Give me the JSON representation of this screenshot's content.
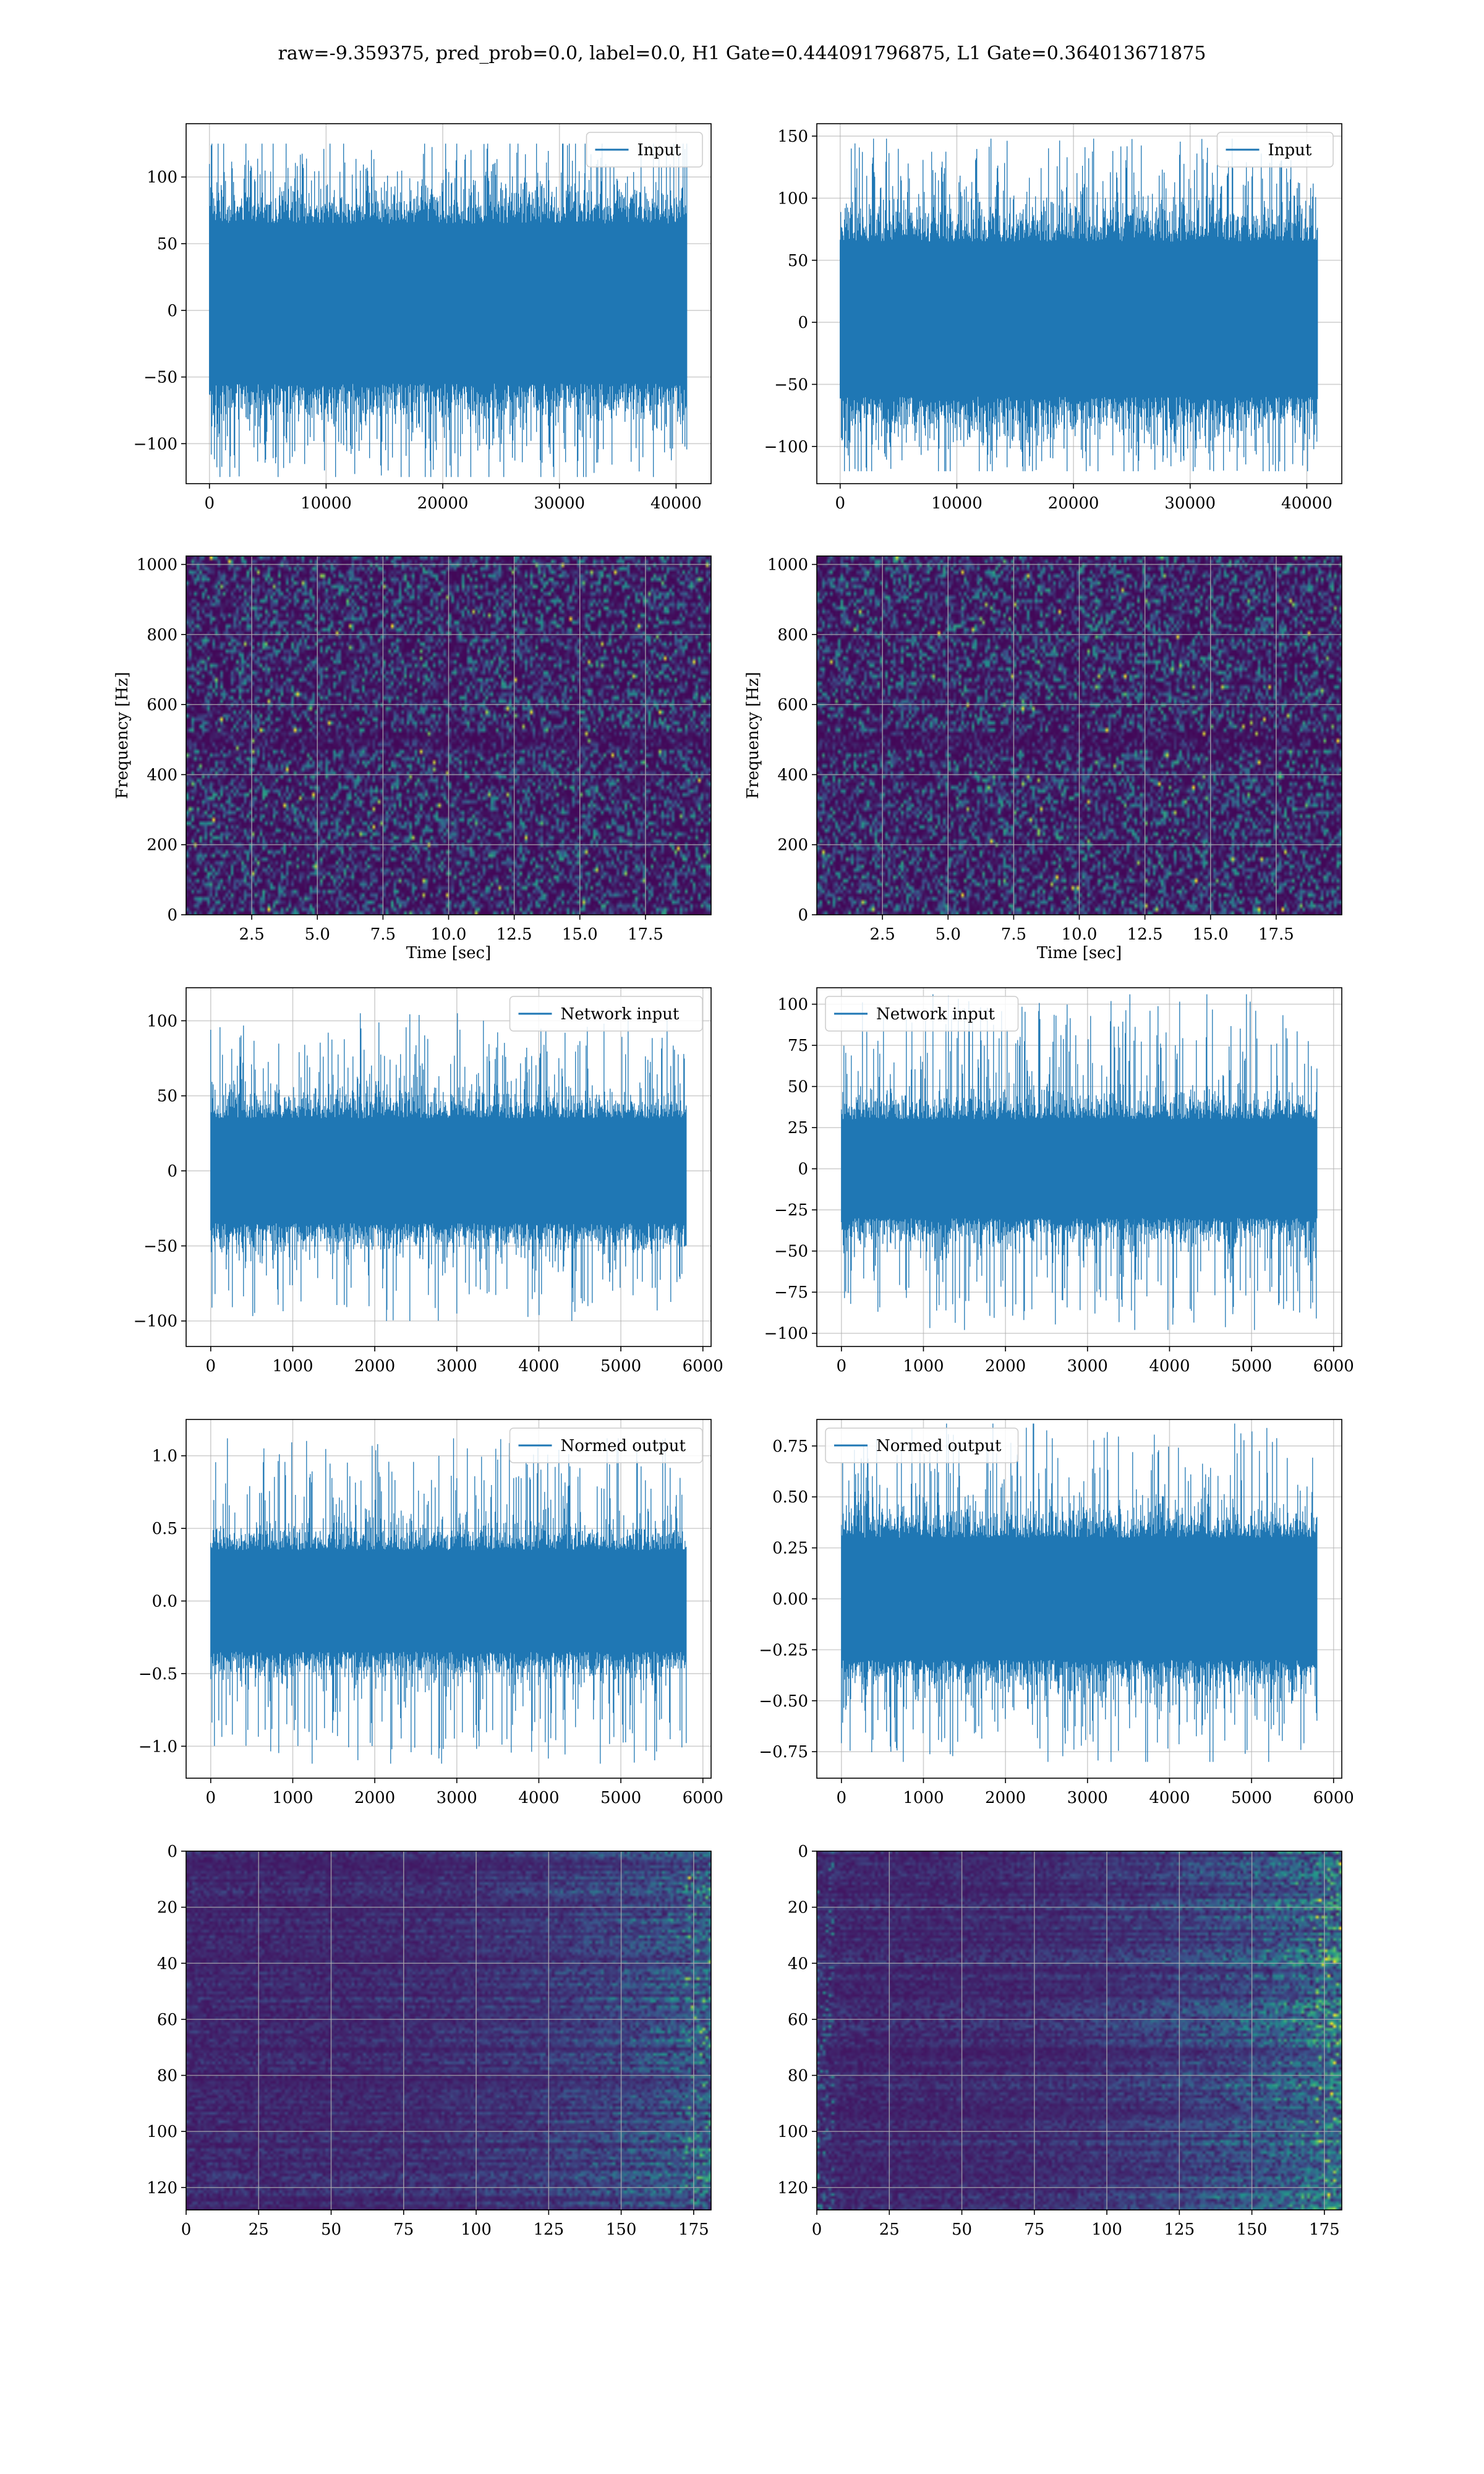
{
  "figure": {
    "title": "raw=-9.359375, pred_prob=0.0, label=0.0, H1 Gate=0.444091796875, L1 Gate=0.364013671875"
  },
  "colors": {
    "series": "#1f77b4",
    "grid": "#b0b0b0",
    "viridis": [
      "#440154",
      "#3b528b",
      "#21918c",
      "#5ec962",
      "#fde725"
    ]
  },
  "chart_data": [
    {
      "id": "h1-input",
      "type": "line",
      "legend": "Input",
      "legend_loc": "top-right",
      "xlim": [
        -2000,
        43000
      ],
      "ylim": [
        -130,
        140
      ],
      "xticks": [
        0,
        10000,
        20000,
        30000,
        40000
      ],
      "xtick_labels": [
        "0",
        "10000",
        "20000",
        "30000",
        "40000"
      ],
      "yticks": [
        100,
        50,
        0,
        -50,
        -100
      ],
      "ytick_labels": [
        "100",
        "50",
        "0",
        "−50",
        "−100"
      ],
      "grid": true,
      "series": [
        {
          "n_points": 40960,
          "x_start": 0,
          "x_end": 40960,
          "core_range": [
            -55,
            65
          ],
          "peak_range": [
            -125,
            125
          ]
        }
      ]
    },
    {
      "id": "l1-input",
      "type": "line",
      "legend": "Input",
      "legend_loc": "top-right",
      "xlim": [
        -2000,
        43000
      ],
      "ylim": [
        -130,
        160
      ],
      "xticks": [
        0,
        10000,
        20000,
        30000,
        40000
      ],
      "xtick_labels": [
        "0",
        "10000",
        "20000",
        "30000",
        "40000"
      ],
      "yticks": [
        150,
        100,
        50,
        0,
        -50,
        -100
      ],
      "ytick_labels": [
        "150",
        "100",
        "50",
        "0",
        "−50",
        "−100"
      ],
      "grid": true,
      "series": [
        {
          "n_points": 40960,
          "x_start": 0,
          "x_end": 40960,
          "core_range": [
            -60,
            65
          ],
          "peak_range": [
            -120,
            148
          ]
        }
      ]
    },
    {
      "id": "h1-spectrogram",
      "type": "heatmap",
      "xlabel": "Time [sec]",
      "ylabel": "Frequency [Hz]",
      "xlim": [
        0,
        20
      ],
      "ylim": [
        0,
        1024
      ],
      "xticks": [
        2.5,
        5,
        7.5,
        10,
        12.5,
        15,
        17.5
      ],
      "xtick_labels": [
        "2.5",
        "5.0",
        "7.5",
        "10.0",
        "12.5",
        "15.0",
        "17.5"
      ],
      "yticks": [
        0,
        200,
        400,
        600,
        800,
        1000
      ],
      "ytick_labels": [
        "0",
        "200",
        "400",
        "600",
        "800",
        "1000"
      ],
      "grid": true,
      "colormap": "viridis"
    },
    {
      "id": "l1-spectrogram",
      "type": "heatmap",
      "xlabel": "Time [sec]",
      "ylabel": "Frequency [Hz]",
      "xlim": [
        0,
        20
      ],
      "ylim": [
        0,
        1024
      ],
      "xticks": [
        2.5,
        5,
        7.5,
        10,
        12.5,
        15,
        17.5
      ],
      "xtick_labels": [
        "2.5",
        "5.0",
        "7.5",
        "10.0",
        "12.5",
        "15.0",
        "17.5"
      ],
      "yticks": [
        0,
        200,
        400,
        600,
        800,
        1000
      ],
      "ytick_labels": [
        "0",
        "200",
        "400",
        "600",
        "800",
        "1000"
      ],
      "grid": true,
      "colormap": "viridis"
    },
    {
      "id": "h1-network-input",
      "type": "line",
      "legend": "Network input",
      "legend_loc": "top-right",
      "xlim": [
        -300,
        6100
      ],
      "ylim": [
        -117,
        122
      ],
      "xticks": [
        0,
        1000,
        2000,
        3000,
        4000,
        5000,
        6000
      ],
      "xtick_labels": [
        "0",
        "1000",
        "2000",
        "3000",
        "4000",
        "5000",
        "6000"
      ],
      "yticks": [
        100,
        50,
        0,
        -50,
        -100
      ],
      "ytick_labels": [
        "100",
        "50",
        "0",
        "−50",
        "−100"
      ],
      "grid": true,
      "series": [
        {
          "n_points": 5800,
          "x_start": 0,
          "x_end": 5800,
          "core_range": [
            -35,
            35
          ],
          "peak_range": [
            -100,
            105
          ]
        }
      ]
    },
    {
      "id": "l1-network-input",
      "type": "line",
      "legend": "Network input",
      "legend_loc": "top-left",
      "xlim": [
        -300,
        6100
      ],
      "ylim": [
        -108,
        110
      ],
      "xticks": [
        0,
        1000,
        2000,
        3000,
        4000,
        5000,
        6000
      ],
      "xtick_labels": [
        "0",
        "1000",
        "2000",
        "3000",
        "4000",
        "5000",
        "6000"
      ],
      "yticks": [
        100,
        75,
        50,
        25,
        0,
        -25,
        -50,
        -75,
        -100
      ],
      "ytick_labels": [
        "100",
        "75",
        "50",
        "25",
        "0",
        "−25",
        "−50",
        "−75",
        "−100"
      ],
      "grid": true,
      "series": [
        {
          "n_points": 5800,
          "x_start": 0,
          "x_end": 5800,
          "core_range": [
            -30,
            30
          ],
          "peak_range": [
            -98,
            106
          ]
        }
      ]
    },
    {
      "id": "h1-normed-output",
      "type": "line",
      "legend": "Normed output",
      "legend_loc": "top-right",
      "xlim": [
        -300,
        6100
      ],
      "ylim": [
        -1.22,
        1.25
      ],
      "xticks": [
        0,
        1000,
        2000,
        3000,
        4000,
        5000,
        6000
      ],
      "xtick_labels": [
        "0",
        "1000",
        "2000",
        "3000",
        "4000",
        "5000",
        "6000"
      ],
      "yticks": [
        1.0,
        0.5,
        0.0,
        -0.5,
        -1.0
      ],
      "ytick_labels": [
        "1.0",
        "0.5",
        "0.0",
        "−0.5",
        "−1.0"
      ],
      "grid": true,
      "series": [
        {
          "n_points": 5800,
          "x_start": 0,
          "x_end": 5800,
          "core_range": [
            -0.35,
            0.35
          ],
          "peak_range": [
            -1.12,
            1.12
          ]
        }
      ]
    },
    {
      "id": "l1-normed-output",
      "type": "line",
      "legend": "Normed output",
      "legend_loc": "top-left",
      "xlim": [
        -300,
        6100
      ],
      "ylim": [
        -0.88,
        0.88
      ],
      "xticks": [
        0,
        1000,
        2000,
        3000,
        4000,
        5000,
        6000
      ],
      "xtick_labels": [
        "0",
        "1000",
        "2000",
        "3000",
        "4000",
        "5000",
        "6000"
      ],
      "yticks": [
        0.75,
        0.5,
        0.25,
        0.0,
        -0.25,
        -0.5,
        -0.75
      ],
      "ytick_labels": [
        "0.75",
        "0.50",
        "0.25",
        "0.00",
        "−0.25",
        "−0.50",
        "−0.75"
      ],
      "grid": true,
      "series": [
        {
          "n_points": 5800,
          "x_start": 0,
          "x_end": 5800,
          "core_range": [
            -0.3,
            0.3
          ],
          "peak_range": [
            -0.8,
            0.86
          ]
        }
      ]
    },
    {
      "id": "h1-feature-map",
      "type": "heatmap",
      "xlim": [
        0,
        181
      ],
      "ylim": [
        128,
        0
      ],
      "xticks": [
        0,
        25,
        50,
        75,
        100,
        125,
        150,
        175
      ],
      "xtick_labels": [
        "0",
        "25",
        "50",
        "75",
        "100",
        "125",
        "150",
        "175"
      ],
      "yticks": [
        0,
        20,
        40,
        60,
        80,
        100,
        120
      ],
      "ytick_labels": [
        "0",
        "20",
        "40",
        "60",
        "80",
        "100",
        "120"
      ],
      "grid": true,
      "colormap": "viridis",
      "n_rows": 128,
      "n_cols": 181
    },
    {
      "id": "l1-feature-map",
      "type": "heatmap",
      "xlim": [
        0,
        181
      ],
      "ylim": [
        128,
        0
      ],
      "xticks": [
        0,
        25,
        50,
        75,
        100,
        125,
        150,
        175
      ],
      "xtick_labels": [
        "0",
        "25",
        "50",
        "75",
        "100",
        "125",
        "150",
        "175"
      ],
      "yticks": [
        0,
        20,
        40,
        60,
        80,
        100,
        120
      ],
      "ytick_labels": [
        "0",
        "20",
        "40",
        "60",
        "80",
        "100",
        "120"
      ],
      "grid": true,
      "colormap": "viridis",
      "n_rows": 128,
      "n_cols": 181
    }
  ]
}
